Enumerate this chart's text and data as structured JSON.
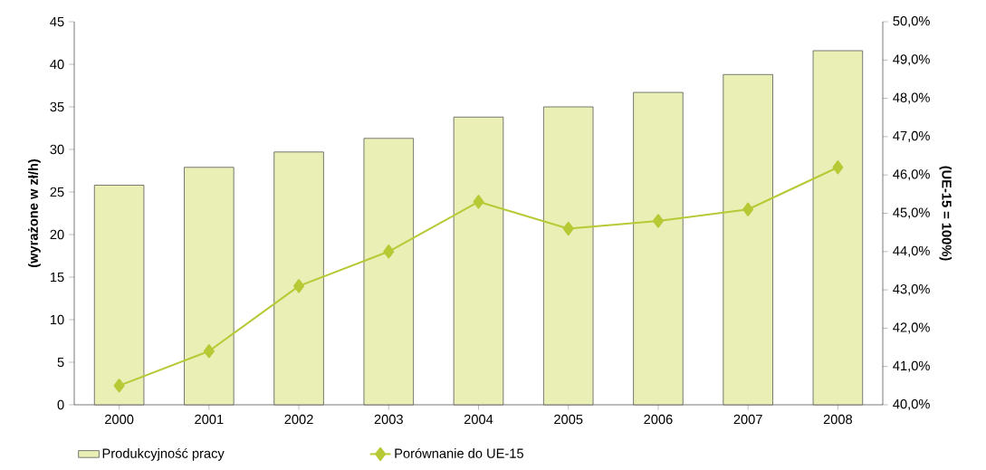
{
  "chart_data": {
    "type": "bar",
    "categories": [
      "2000",
      "2001",
      "2002",
      "2003",
      "2004",
      "2005",
      "2006",
      "2007",
      "2008"
    ],
    "ylabel": "(wyrażone w zł/h)",
    "y2label": "(UE-15 = 100%)",
    "ylim": [
      0,
      45
    ],
    "yticks": [
      0,
      5,
      10,
      15,
      20,
      25,
      30,
      35,
      40,
      45
    ],
    "y2lim": [
      40,
      50
    ],
    "y2ticks": [
      {
        "value": 40,
        "label": "40,0%"
      },
      {
        "value": 41,
        "label": "41,0%"
      },
      {
        "value": 42,
        "label": "42,0%"
      },
      {
        "value": 43,
        "label": "43,0%"
      },
      {
        "value": 44,
        "label": "44,0%"
      },
      {
        "value": 45,
        "label": "45,0%"
      },
      {
        "value": 46,
        "label": "46,0%"
      },
      {
        "value": 47,
        "label": "47,0%"
      },
      {
        "value": 48,
        "label": "48,0%"
      },
      {
        "value": 49,
        "label": "49,0%"
      },
      {
        "value": 50,
        "label": "50,0%"
      }
    ],
    "legend": "bottom",
    "grid": false,
    "series": [
      {
        "name": "Produkcyjność pracy",
        "color": "#e9efb5",
        "values": [
          25.8,
          27.9,
          29.7,
          31.3,
          33.8,
          35.0,
          36.7,
          38.8,
          41.6
        ]
      },
      {
        "name": "Porównanie do UE-15",
        "type": "line",
        "axis": "y2",
        "color": "#b7c935",
        "marker": "diamond",
        "values": [
          40.5,
          41.4,
          43.1,
          44.0,
          45.3,
          44.6,
          44.8,
          45.1,
          46.2
        ]
      }
    ]
  }
}
